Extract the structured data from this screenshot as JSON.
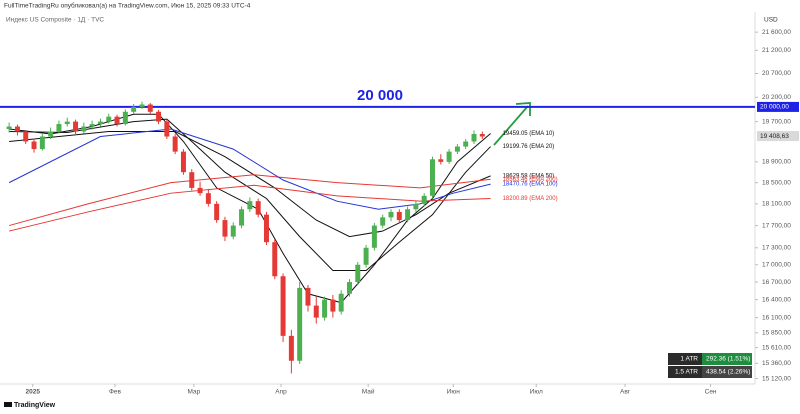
{
  "chart_data": {
    "type": "candlestick",
    "header": "FullTimeTradingRu опубликовал(а) на TradingView.com, Июн 15, 2025 09:33 UTC-4",
    "title": "Индекс US Composite · 1Д · TVC",
    "currency": "USD",
    "log_scale": true,
    "up_color": "#4caf50",
    "down_color": "#e53935",
    "ylim": [
      15036,
      22053
    ],
    "yticks": [
      {
        "value": 21600,
        "label": "21 600,00"
      },
      {
        "value": 21200,
        "label": "21 200,00"
      },
      {
        "value": 20700,
        "label": "20 700,00"
      },
      {
        "value": 20200,
        "label": "20 200,00"
      },
      {
        "value": 19700,
        "label": "19 700,00"
      },
      {
        "value": 18900,
        "label": "18 900,00"
      },
      {
        "value": 18500,
        "label": "18 500,00"
      },
      {
        "value": 18100,
        "label": "18 100,00"
      },
      {
        "value": 17700,
        "label": "17 700,00"
      },
      {
        "value": 17300,
        "label": "17 300,00"
      },
      {
        "value": 17000,
        "label": "17 000,00"
      },
      {
        "value": 16700,
        "label": "16 700,00"
      },
      {
        "value": 16400,
        "label": "16 400,00"
      },
      {
        "value": 16100,
        "label": "16 100,00"
      },
      {
        "value": 15850,
        "label": "15 850,00"
      },
      {
        "value": 15610,
        "label": "15 610,00"
      },
      {
        "value": 15360,
        "label": "15 360,00"
      },
      {
        "value": 15120,
        "label": "15 120,00"
      }
    ],
    "xlim": [
      -1.2,
      180.7
    ],
    "xticks": [
      {
        "value": 6.7,
        "label": "2025"
      },
      {
        "value": 26.5,
        "label": "Фев"
      },
      {
        "value": 45.5,
        "label": "Мар"
      },
      {
        "value": 66.5,
        "label": "Апр"
      },
      {
        "value": 87.5,
        "label": "Май"
      },
      {
        "value": 108,
        "label": "Июн"
      },
      {
        "value": 128,
        "label": "Июл"
      },
      {
        "value": 149.4,
        "label": "Авг"
      },
      {
        "value": 170,
        "label": "Сен"
      }
    ],
    "hline": {
      "value": 20000,
      "label": "20 000",
      "axis_label": "20 000,00",
      "color": "#1e22e6"
    },
    "last_price": {
      "value": 19408.63,
      "label": "19 408,63"
    },
    "x": [
      1,
      3,
      5,
      7,
      9,
      11,
      13,
      15,
      17,
      19,
      21,
      23,
      25,
      27,
      29,
      31,
      33,
      35,
      37,
      39,
      41,
      43,
      45,
      47,
      49,
      51,
      53,
      55,
      57,
      59,
      61,
      63,
      65,
      67,
      69,
      71,
      73,
      75,
      77,
      79,
      81,
      83,
      85,
      87,
      89,
      91,
      93,
      95,
      97,
      99,
      101,
      103,
      105,
      107,
      109,
      111,
      113,
      115
    ],
    "candles": [
      [
        19550,
        19680,
        19480,
        19600
      ],
      [
        19600,
        19640,
        19420,
        19500
      ],
      [
        19500,
        19530,
        19250,
        19300
      ],
      [
        19300,
        19360,
        19080,
        19150
      ],
      [
        19150,
        19450,
        19120,
        19400
      ],
      [
        19400,
        19580,
        19350,
        19500
      ],
      [
        19500,
        19720,
        19460,
        19650
      ],
      [
        19650,
        19780,
        19600,
        19700
      ],
      [
        19700,
        19740,
        19420,
        19500
      ],
      [
        19500,
        19680,
        19460,
        19600
      ],
      [
        19600,
        19720,
        19540,
        19650
      ],
      [
        19650,
        19760,
        19600,
        19700
      ],
      [
        19700,
        19860,
        19660,
        19800
      ],
      [
        19800,
        19840,
        19600,
        19650
      ],
      [
        19650,
        19950,
        19620,
        19900
      ],
      [
        19900,
        20060,
        19860,
        20000
      ],
      [
        20000,
        20110,
        19960,
        20050
      ],
      [
        20050,
        20080,
        19850,
        19900
      ],
      [
        19900,
        19940,
        19650,
        19700
      ],
      [
        19700,
        19740,
        19350,
        19400
      ],
      [
        19400,
        19450,
        19050,
        19100
      ],
      [
        19100,
        19150,
        18650,
        18700
      ],
      [
        18700,
        18760,
        18350,
        18400
      ],
      [
        18400,
        18520,
        18250,
        18300
      ],
      [
        18300,
        18380,
        18050,
        18100
      ],
      [
        18100,
        18150,
        17750,
        17800
      ],
      [
        17800,
        17860,
        17420,
        17500
      ],
      [
        17500,
        17760,
        17450,
        17700
      ],
      [
        17700,
        18050,
        17650,
        18000
      ],
      [
        18000,
        18220,
        17950,
        18150
      ],
      [
        18150,
        18200,
        17850,
        17900
      ],
      [
        17900,
        17950,
        17350,
        17400
      ],
      [
        17400,
        17450,
        16750,
        16800
      ],
      [
        16800,
        16850,
        15700,
        15800
      ],
      [
        15800,
        15900,
        15200,
        15400
      ],
      [
        15400,
        16700,
        15350,
        16600
      ],
      [
        16600,
        16650,
        16200,
        16300
      ],
      [
        16300,
        16450,
        16000,
        16100
      ],
      [
        16100,
        16450,
        16050,
        16400
      ],
      [
        16400,
        16480,
        16100,
        16200
      ],
      [
        16200,
        16560,
        16150,
        16500
      ],
      [
        16500,
        16750,
        16450,
        16700
      ],
      [
        16700,
        17050,
        16650,
        17000
      ],
      [
        17000,
        17350,
        16950,
        17300
      ],
      [
        17300,
        17750,
        17250,
        17700
      ],
      [
        17700,
        17900,
        17650,
        17850
      ],
      [
        17850,
        18000,
        17780,
        17950
      ],
      [
        17950,
        18000,
        17750,
        17800
      ],
      [
        17800,
        18050,
        17760,
        18000
      ],
      [
        18000,
        18150,
        17950,
        18100
      ],
      [
        18100,
        18300,
        18050,
        18250
      ],
      [
        18250,
        19000,
        18200,
        18950
      ],
      [
        18950,
        19050,
        18850,
        18900
      ],
      [
        18900,
        19150,
        18860,
        19100
      ],
      [
        19100,
        19250,
        19050,
        19200
      ],
      [
        19200,
        19350,
        19150,
        19300
      ],
      [
        19300,
        19520,
        19250,
        19450
      ],
      [
        19450,
        19500,
        19350,
        19400
      ]
    ],
    "series": [
      {
        "label": "19459.05 (EMA 10)",
        "color": "#111111",
        "x": [
          1,
          11,
          21,
          31,
          37,
          43,
          51,
          61,
          67,
          73,
          81,
          89,
          97,
          103,
          109,
          117
        ],
        "values": [
          19550,
          19450,
          19600,
          19850,
          19850,
          19300,
          18400,
          18000,
          17200,
          16500,
          16350,
          17000,
          17800,
          18200,
          18900,
          19459.05
        ]
      },
      {
        "label": "19199.76 (EMA 20)",
        "color": "#111111",
        "x": [
          1,
          15,
          31,
          39,
          45,
          53,
          63,
          71,
          79,
          87,
          95,
          103,
          111,
          117
        ],
        "values": [
          19500,
          19480,
          19700,
          19750,
          19300,
          18700,
          18200,
          17500,
          16900,
          16900,
          17400,
          17900,
          18700,
          19199.76
        ]
      },
      {
        "label": "18629.58 (EMA 50)",
        "color": "#111111",
        "x": [
          1,
          25,
          41,
          53,
          65,
          75,
          83,
          91,
          99,
          107,
          117
        ],
        "values": [
          19300,
          19500,
          19500,
          19000,
          18400,
          17800,
          17500,
          17600,
          17900,
          18300,
          18629.58
        ]
      },
      {
        "label": "18563.46 (EMA 200)",
        "color": "#e53935",
        "x": [
          1,
          20,
          40,
          60,
          80,
          100,
          117
        ],
        "values": [
          17700,
          18100,
          18500,
          18650,
          18500,
          18400,
          18563.46
        ]
      },
      {
        "label": "18470.76 (EMA 100)",
        "color": "#2633d6",
        "x": [
          1,
          23,
          40,
          55,
          67,
          80,
          90,
          100,
          108,
          117
        ],
        "values": [
          18500,
          19400,
          19550,
          19150,
          18550,
          18150,
          18000,
          18100,
          18300,
          18470.76
        ]
      },
      {
        "label": "18200.89 (EMA 200)",
        "color": "#e53935",
        "x": [
          1,
          20,
          40,
          60,
          80,
          100,
          117
        ],
        "values": [
          17600,
          17950,
          18300,
          18450,
          18250,
          18150,
          18200.89
        ]
      }
    ],
    "atr": [
      {
        "label": "1 ATR",
        "value_label": "292.36 (1.51%)",
        "color": "#1e8e3e"
      },
      {
        "label": "1.5 ATR",
        "value_label": "438.54 (2.26%)",
        "color": "#444444"
      }
    ],
    "footer": "TradingView"
  }
}
